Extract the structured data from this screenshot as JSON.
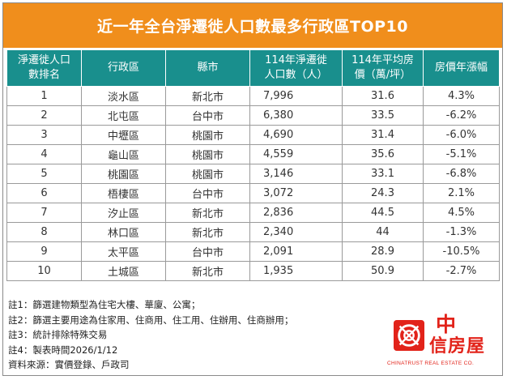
{
  "title": "近一年全台淨遷徙人口數最多行政區TOP10",
  "table": {
    "headers": [
      [
        "淨遷徙人口",
        "數排名"
      ],
      [
        "行政區"
      ],
      [
        "縣市"
      ],
      [
        "114年淨遷徙",
        "人口數（人）"
      ],
      [
        "114年平均房",
        "價（萬/坪）"
      ],
      [
        "房價年漲幅"
      ]
    ],
    "rows": [
      {
        "rank": "1",
        "district": "淡水區",
        "city": "新北市",
        "migration": "7,996",
        "price": "31.6",
        "growth": "4.3%"
      },
      {
        "rank": "2",
        "district": "北屯區",
        "city": "台中市",
        "migration": "6,380",
        "price": "33.5",
        "growth": "-6.2%"
      },
      {
        "rank": "3",
        "district": "中壢區",
        "city": "桃園市",
        "migration": "4,690",
        "price": "31.4",
        "growth": "-6.0%"
      },
      {
        "rank": "4",
        "district": "龜山區",
        "city": "桃園市",
        "migration": "4,559",
        "price": "35.6",
        "growth": "-5.1%"
      },
      {
        "rank": "5",
        "district": "桃園區",
        "city": "桃園市",
        "migration": "3,146",
        "price": "33.1",
        "growth": "-6.8%"
      },
      {
        "rank": "6",
        "district": "梧棲區",
        "city": "台中市",
        "migration": "3,072",
        "price": "24.3",
        "growth": "2.1%"
      },
      {
        "rank": "7",
        "district": "汐止區",
        "city": "新北市",
        "migration": "2,836",
        "price": "44.5",
        "growth": "4.5%"
      },
      {
        "rank": "8",
        "district": "林口區",
        "city": "新北市",
        "migration": "2,340",
        "price": "44",
        "growth": "-1.3%"
      },
      {
        "rank": "9",
        "district": "太平區",
        "city": "台中市",
        "migration": "2,091",
        "price": "28.9",
        "growth": "-10.5%"
      },
      {
        "rank": "10",
        "district": "土城區",
        "city": "新北市",
        "migration": "1,935",
        "price": "50.9",
        "growth": "-2.7%"
      }
    ]
  },
  "notes": [
    "註1：篩選建物類型為住宅大樓、華廈、公寓；",
    "註2：篩選主要用途為住家用、住商用、住工用、住辦用、住商辦用；",
    "註3：統計排除特殊交易",
    "註4：製表時間2026/1/12",
    "資料來源：實價登錄、戶政司"
  ],
  "logo": {
    "zh_line1": "中",
    "zh_line2": "信房屋",
    "en": "CHINATRUST REAL ESTATE CO.",
    "color": "#e2231a",
    "mark_icon": "chinatrust-logo-icon"
  },
  "colors": {
    "title_bg": "#f08e1c",
    "header_bg": "#198f8d"
  }
}
